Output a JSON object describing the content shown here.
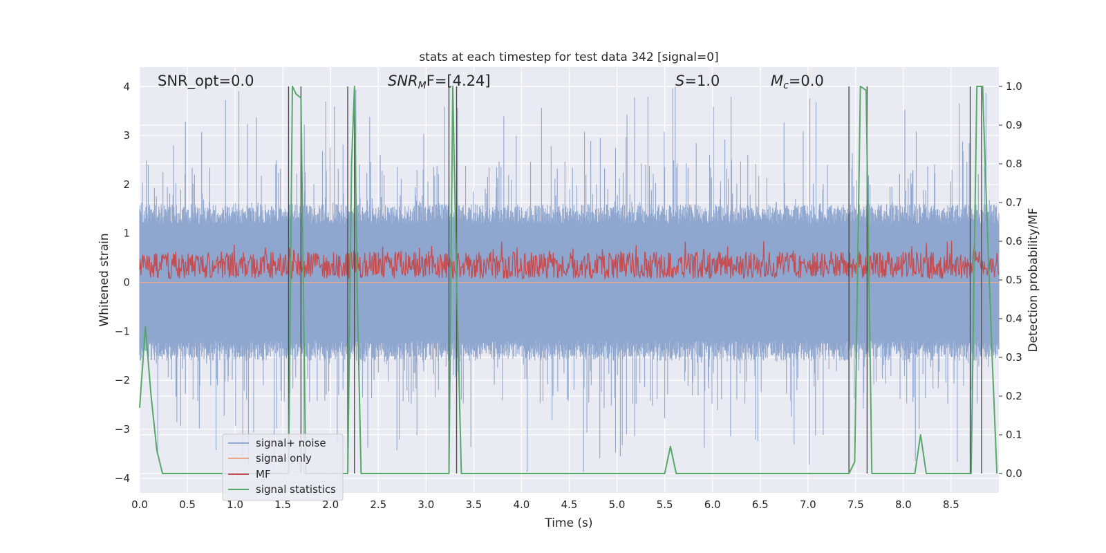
{
  "chart_data": {
    "type": "line",
    "title": "stats at each timestep for test data 342 [signal=0]",
    "xlabel": "Time (s)",
    "ylabel": "Whitened strain",
    "y2label": "Detection probability/MF",
    "xlim": [
      0.0,
      9.0
    ],
    "ylim": [
      -4.3,
      4.4
    ],
    "y2lim": [
      -0.05,
      1.05
    ],
    "x_ticks": [
      0.0,
      0.5,
      1.0,
      1.5,
      2.0,
      2.5,
      3.0,
      3.5,
      4.0,
      4.5,
      5.0,
      5.5,
      6.0,
      6.5,
      7.0,
      7.5,
      8.0,
      8.5
    ],
    "x_tick_labels": [
      "0.0",
      "0.5",
      "1.0",
      "1.5",
      "2.0",
      "2.5",
      "3.0",
      "3.5",
      "4.0",
      "4.5",
      "5.0",
      "5.5",
      "6.0",
      "6.5",
      "7.0",
      "7.5",
      "8.0",
      "8.5"
    ],
    "y_ticks": [
      -4,
      -3,
      -2,
      -1,
      0,
      1,
      2,
      3,
      4
    ],
    "y_tick_labels": [
      "−4",
      "−3",
      "−2",
      "−1",
      "0",
      "1",
      "2",
      "3",
      "4"
    ],
    "y2_ticks": [
      0.0,
      0.1,
      0.2,
      0.3,
      0.4,
      0.5,
      0.6,
      0.7,
      0.8,
      0.9,
      1.0
    ],
    "y2_tick_labels": [
      "0.0",
      "0.1",
      "0.2",
      "0.3",
      "0.4",
      "0.5",
      "0.6",
      "0.7",
      "0.8",
      "0.9",
      "1.0"
    ],
    "grid": true,
    "legend_position": "lower-left",
    "annotations": {
      "snr_opt": "SNR_opt=0.0",
      "snr_mf_sym": "SNR",
      "snr_mf_sub": "M",
      "snr_mf_rest": "F=[4.24]",
      "s_sym": "S",
      "s_rest": "=1.0",
      "mc_sym": "M",
      "mc_sub": "c",
      "mc_rest": "=0.0"
    },
    "series": [
      {
        "name": "signal+ noise",
        "color": "#8fa6cf",
        "axis": "left",
        "kind": "noise",
        "band_low": -1.6,
        "band_high": 1.6,
        "peak_max": 4.0,
        "peak_min": -3.9
      },
      {
        "name": "signal only",
        "color": "#e8a88c",
        "axis": "left",
        "kind": "flat",
        "y": 0.0
      },
      {
        "name": "MF",
        "color": "#c44e52",
        "axis": "left",
        "kind": "noise",
        "band_low": 0.05,
        "band_high": 0.75,
        "peak_max": 0.9,
        "peak_min": 0.0
      },
      {
        "name": "signal statistics",
        "color": "#55a868",
        "axis": "right",
        "x": [
          0.0,
          0.06,
          0.12,
          0.18,
          0.24,
          1.56,
          1.6,
          1.64,
          1.69,
          1.74,
          2.18,
          2.22,
          2.25,
          2.28,
          2.32,
          3.24,
          3.28,
          3.32,
          3.37,
          5.5,
          5.56,
          5.62,
          7.43,
          7.49,
          7.55,
          7.61,
          7.67,
          8.12,
          8.18,
          8.24,
          8.71,
          8.77,
          8.83,
          8.87,
          8.93,
          8.98
        ],
        "y": [
          0.17,
          0.38,
          0.2,
          0.06,
          0.0,
          0.0,
          1.0,
          0.98,
          0.97,
          0.0,
          0.0,
          0.8,
          1.0,
          0.45,
          0.0,
          0.0,
          1.0,
          0.5,
          0.0,
          0.0,
          0.07,
          0.0,
          0.0,
          0.03,
          1.0,
          0.99,
          0.0,
          0.0,
          0.1,
          0.0,
          0.0,
          1.0,
          1.0,
          0.7,
          0.3,
          0.0
        ]
      }
    ],
    "vertical_lines": [
      1.56,
      1.69,
      2.18,
      2.25,
      3.24,
      3.32,
      7.43,
      7.62,
      8.7,
      8.82
    ]
  }
}
